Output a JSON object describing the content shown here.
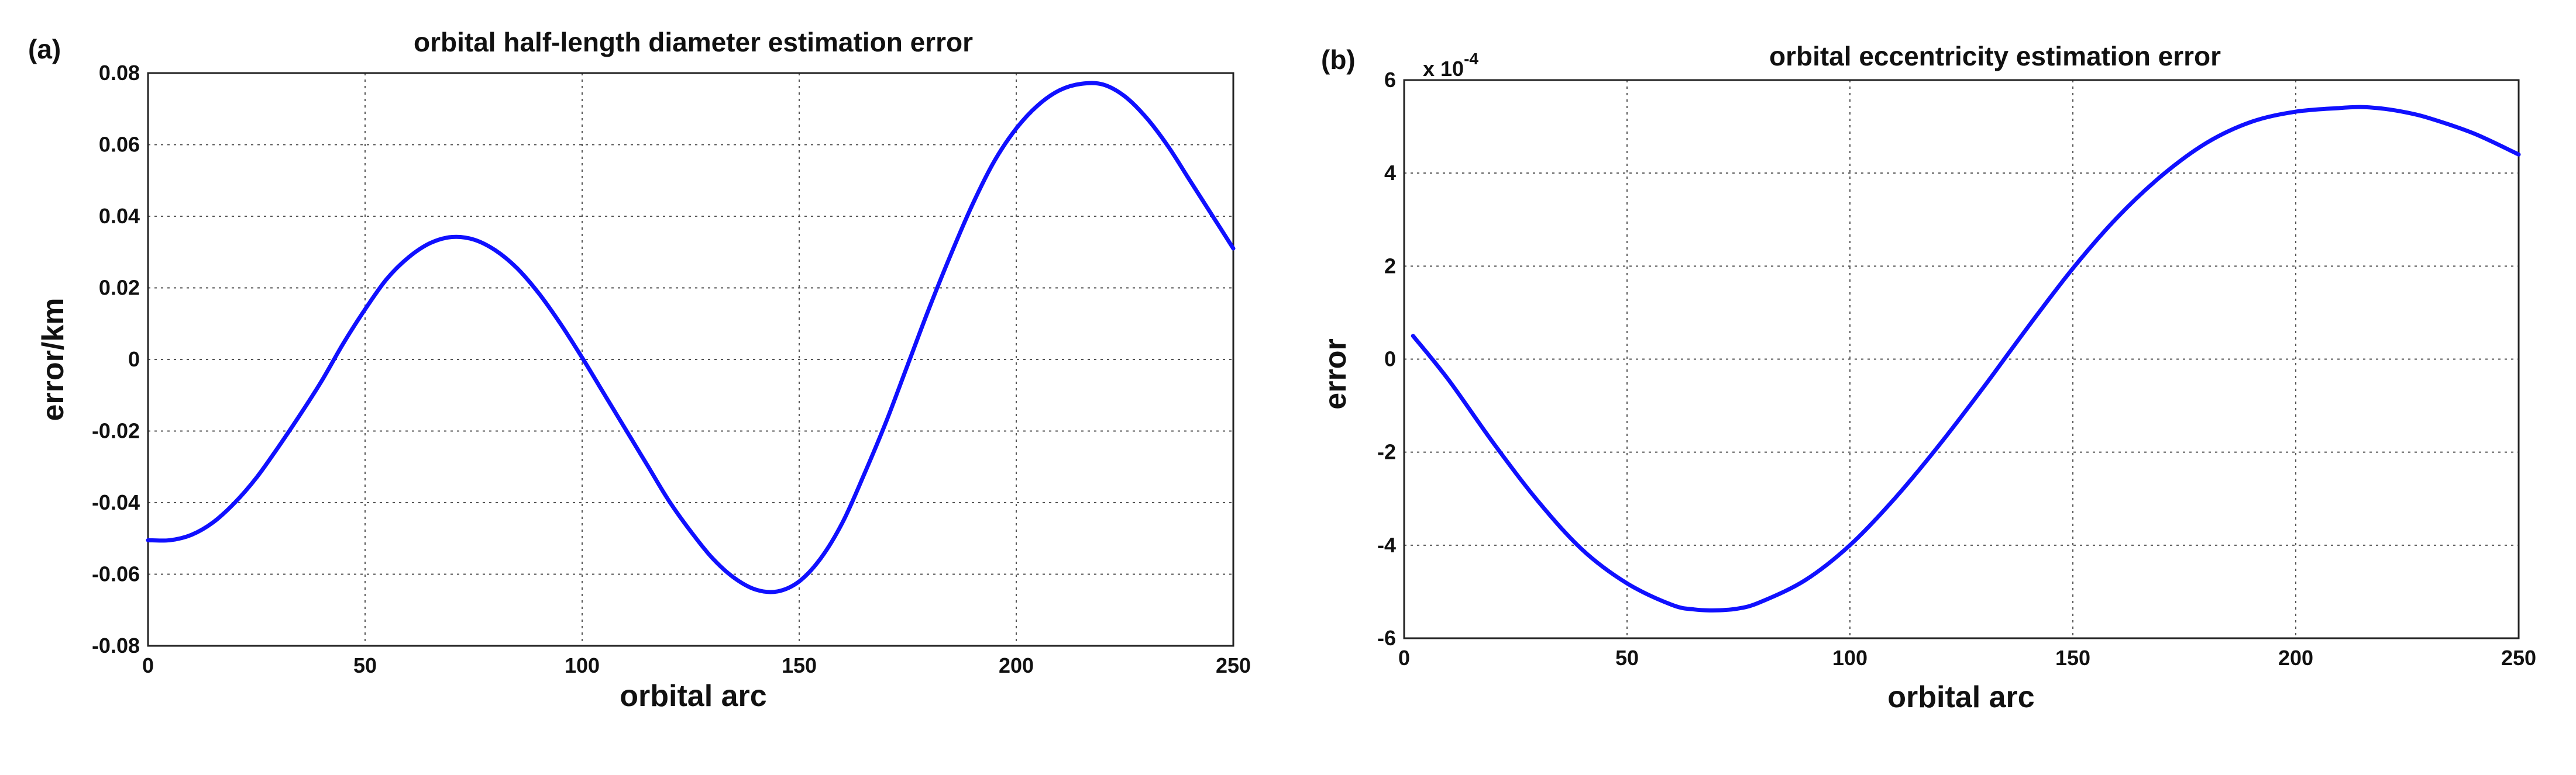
{
  "chart_data": [
    {
      "type": "line",
      "panel_label": "(a)",
      "title": "orbital half-length diameter estimation error",
      "xlabel": "orbital arc",
      "ylabel": "error/km",
      "exponent_label": "",
      "xlim": [
        0,
        250
      ],
      "ylim": [
        -0.08,
        0.08
      ],
      "xticks": [
        0,
        50,
        100,
        150,
        200,
        250
      ],
      "yticks": [
        -0.08,
        -0.06,
        -0.04,
        -0.02,
        0,
        0.02,
        0.04,
        0.06,
        0.08
      ],
      "xtick_labels": [
        "0",
        "50",
        "100",
        "150",
        "200",
        "250"
      ],
      "ytick_labels": [
        "-0.08",
        "-0.06",
        "-0.04",
        "-0.02",
        "0",
        "0.02",
        "0.04",
        "0.06",
        "0.08"
      ],
      "grid": true,
      "color": "#1010ff",
      "series": [
        {
          "x": [
            0,
            5,
            10,
            15,
            20,
            25,
            30,
            35,
            40,
            45,
            50,
            55,
            60,
            65,
            70,
            75,
            80,
            85,
            90,
            95,
            100,
            105,
            110,
            115,
            120,
            125,
            130,
            135,
            140,
            145,
            150,
            155,
            160,
            165,
            170,
            175,
            180,
            185,
            190,
            195,
            200,
            205,
            210,
            215,
            220,
            225,
            230,
            235,
            240,
            245,
            250
          ],
          "y": [
            -0.0505,
            -0.0505,
            -0.049,
            -0.0455,
            -0.04,
            -0.033,
            -0.0245,
            -0.0155,
            -0.006,
            0.0045,
            0.014,
            0.0225,
            0.0285,
            0.0325,
            0.0342,
            0.0335,
            0.0305,
            0.0255,
            0.0185,
            0.01,
            0.0005,
            -0.0095,
            -0.0195,
            -0.0295,
            -0.0395,
            -0.048,
            -0.0555,
            -0.061,
            -0.0643,
            -0.0648,
            -0.062,
            -0.0555,
            -0.0455,
            -0.032,
            -0.0175,
            -0.0015,
            0.0145,
            0.0295,
            0.0435,
            0.0555,
            0.0645,
            0.071,
            0.0752,
            0.077,
            0.0768,
            0.0735,
            0.0675,
            0.0595,
            0.05,
            0.0405,
            0.031
          ]
        }
      ]
    },
    {
      "type": "line",
      "panel_label": "(b)",
      "title": "orbital eccentricity estimation error",
      "xlabel": "orbital arc",
      "ylabel": "error",
      "exponent_label": "x 10",
      "exponent_power": "-4",
      "xlim": [
        0,
        250
      ],
      "ylim": [
        -6,
        6
      ],
      "xticks": [
        0,
        50,
        100,
        150,
        200,
        250
      ],
      "yticks": [
        -6,
        -4,
        -2,
        0,
        2,
        4,
        6
      ],
      "xtick_labels": [
        "0",
        "50",
        "100",
        "150",
        "200",
        "250"
      ],
      "ytick_labels": [
        "-6",
        "-4",
        "-2",
        "0",
        "2",
        "4",
        "6"
      ],
      "grid": true,
      "color": "#1010ff",
      "series": [
        {
          "x": [
            2,
            10,
            20,
            30,
            40,
            50,
            60,
            65,
            70,
            75,
            80,
            90,
            100,
            110,
            120,
            130,
            140,
            150,
            160,
            170,
            180,
            190,
            200,
            210,
            215,
            220,
            225,
            230,
            240,
            250
          ],
          "y": [
            0.5,
            -0.45,
            -1.8,
            -3.05,
            -4.1,
            -4.82,
            -5.28,
            -5.38,
            -5.4,
            -5.36,
            -5.22,
            -4.75,
            -4.0,
            -3.0,
            -1.85,
            -0.6,
            0.7,
            1.95,
            3.05,
            3.95,
            4.65,
            5.1,
            5.32,
            5.4,
            5.42,
            5.38,
            5.3,
            5.18,
            4.85,
            4.4
          ]
        }
      ]
    }
  ]
}
